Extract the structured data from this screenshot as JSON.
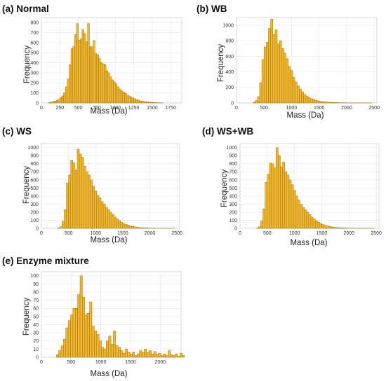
{
  "figure": {
    "bar_color": "#F2B731",
    "bar_edge_color": "#9A6F10",
    "grid_color": "#E6E6E6",
    "background": "#FFFFFF"
  },
  "chart_data": [
    {
      "type": "bar",
      "title": "(a) Normal",
      "xlabel": "Mass (Da)",
      "ylabel": "Frequency",
      "xlim": [
        0,
        1900
      ],
      "ylim": [
        0,
        850
      ],
      "xticks": [
        0,
        250,
        500,
        750,
        1000,
        1250,
        1500,
        1750
      ],
      "yticks": [
        0,
        100,
        200,
        300,
        400,
        500,
        600,
        700,
        800
      ],
      "bin_start": 100,
      "bin_width": 25,
      "values": [
        5,
        8,
        12,
        18,
        25,
        35,
        55,
        70,
        100,
        160,
        240,
        380,
        540,
        560,
        680,
        790,
        625,
        640,
        730,
        690,
        610,
        790,
        560,
        560,
        620,
        490,
        480,
        440,
        400,
        390,
        380,
        320,
        300,
        260,
        230,
        210,
        190,
        160,
        140,
        120,
        110,
        95,
        80,
        70,
        60,
        50,
        42,
        35,
        28,
        22,
        18,
        15,
        12,
        10,
        8,
        6,
        5,
        4,
        3,
        2,
        2,
        1
      ]
    },
    {
      "type": "bar",
      "title": "(b) WB",
      "xlabel": "Mass (Da)",
      "ylabel": "Frequency",
      "xlim": [
        0,
        2550
      ],
      "ylim": [
        0,
        1100
      ],
      "xticks": [
        0,
        500,
        1000,
        1500,
        2000,
        2500
      ],
      "yticks": [
        0,
        200,
        400,
        600,
        800,
        1000
      ],
      "bin_start": 300,
      "bin_width": 40,
      "values": [
        10,
        30,
        80,
        260,
        560,
        720,
        780,
        960,
        1080,
        880,
        940,
        760,
        800,
        700,
        640,
        570,
        470,
        420,
        330,
        270,
        220,
        180,
        140,
        110,
        90,
        70,
        55,
        45,
        35,
        28,
        22,
        18,
        14,
        12,
        10,
        8,
        6,
        5,
        4,
        3,
        3,
        2,
        2,
        1,
        1,
        1,
        1,
        1,
        1,
        1,
        1,
        1,
        1,
        1
      ]
    },
    {
      "type": "bar",
      "title": "(c) WS",
      "xlabel": "Mass (Da)",
      "ylabel": "Frequency",
      "xlim": [
        0,
        2550
      ],
      "ylim": [
        0,
        1050
      ],
      "xticks": [
        0,
        500,
        1000,
        1500,
        2000,
        2500
      ],
      "yticks": [
        0,
        100,
        200,
        300,
        400,
        500,
        600,
        700,
        800,
        900,
        1000
      ],
      "bin_start": 300,
      "bin_width": 40,
      "values": [
        5,
        20,
        90,
        230,
        560,
        660,
        840,
        810,
        720,
        980,
        920,
        880,
        770,
        700,
        660,
        600,
        520,
        460,
        410,
        380,
        330,
        300,
        260,
        230,
        200,
        170,
        140,
        115,
        95,
        75,
        60,
        48,
        38,
        30,
        24,
        18,
        14,
        10,
        8,
        6,
        5,
        4,
        3,
        2,
        2,
        1,
        1,
        1,
        1,
        1,
        1,
        1,
        1,
        1
      ]
    },
    {
      "type": "bar",
      "title": "(d) WS+WB",
      "xlabel": "Mass (Da)",
      "ylabel": "Frequency",
      "xlim": [
        0,
        2550
      ],
      "ylim": [
        0,
        1050
      ],
      "xticks": [
        0,
        500,
        1000,
        1500,
        2000,
        2500
      ],
      "yticks": [
        0,
        100,
        200,
        300,
        400,
        500,
        600,
        700,
        800,
        900,
        1000
      ],
      "bin_start": 300,
      "bin_width": 40,
      "values": [
        5,
        20,
        90,
        240,
        570,
        670,
        810,
        800,
        750,
        1000,
        900,
        760,
        820,
        700,
        660,
        600,
        540,
        470,
        400,
        350,
        300,
        260,
        230,
        200,
        170,
        140,
        115,
        95,
        75,
        60,
        48,
        38,
        30,
        24,
        18,
        14,
        10,
        8,
        6,
        5,
        4,
        3,
        2,
        2,
        1,
        1,
        1,
        1,
        1,
        1,
        1,
        1,
        1,
        1
      ]
    },
    {
      "type": "bar",
      "title": "(e) Enzyme mixture",
      "xlabel": "Mass (Da)",
      "ylabel": "Frequency",
      "xlim": [
        0,
        2350
      ],
      "ylim": [
        0,
        105
      ],
      "xticks": [
        0,
        500,
        1000,
        1500,
        2000
      ],
      "yticks": [
        0,
        10,
        20,
        30,
        40,
        50,
        60,
        70,
        80,
        90,
        100
      ],
      "bin_start": 250,
      "bin_width": 40,
      "values": [
        3,
        8,
        14,
        22,
        36,
        45,
        52,
        60,
        60,
        77,
        100,
        74,
        52,
        54,
        68,
        38,
        32,
        28,
        20,
        12,
        10,
        20,
        26,
        16,
        32,
        14,
        12,
        8,
        5,
        10,
        6,
        4,
        6,
        2,
        4,
        8,
        6,
        10,
        6,
        8,
        4,
        7,
        3,
        5,
        2,
        4,
        2,
        8,
        3,
        2,
        4,
        1,
        5,
        2
      ]
    }
  ]
}
